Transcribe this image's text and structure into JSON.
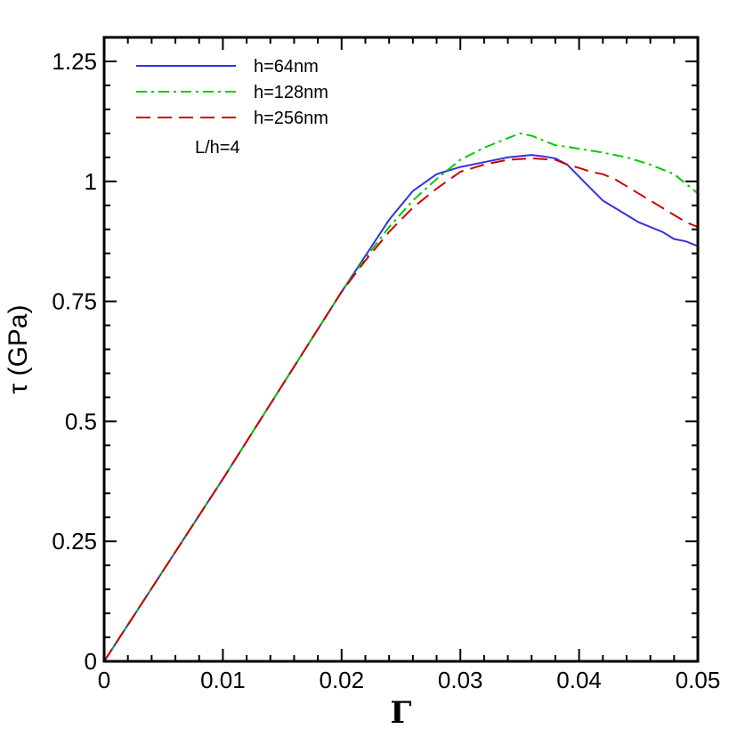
{
  "chart_data": {
    "type": "line",
    "title": "",
    "xlabel": "Γ",
    "ylabel": "τ (GPa)",
    "xlim": [
      0,
      0.05
    ],
    "ylim": [
      0,
      1.3
    ],
    "xticks": [
      0,
      0.01,
      0.02,
      0.03,
      0.04,
      0.05
    ],
    "xtick_labels": [
      "0",
      "0.01",
      "0.02",
      "0.03",
      "0.04",
      "0.05"
    ],
    "yticks": [
      0,
      0.25,
      0.5,
      0.75,
      1,
      1.25
    ],
    "ytick_labels": [
      "0",
      "0.25",
      "0.5",
      "0.75",
      "1",
      "1.25"
    ],
    "grid": false,
    "legend_position": "top-left",
    "annotation": "L/h=4",
    "series": [
      {
        "name": "h=64nm",
        "color": "#3333dd",
        "dash": "solid",
        "x": [
          0,
          0.005,
          0.01,
          0.015,
          0.02,
          0.022,
          0.024,
          0.026,
          0.028,
          0.03,
          0.032,
          0.034,
          0.036,
          0.037,
          0.038,
          0.039,
          0.04,
          0.041,
          0.042,
          0.043,
          0.044,
          0.045,
          0.046,
          0.047,
          0.048,
          0.049,
          0.05
        ],
        "y": [
          0,
          0.19,
          0.38,
          0.575,
          0.77,
          0.845,
          0.92,
          0.98,
          1.015,
          1.03,
          1.04,
          1.05,
          1.055,
          1.052,
          1.048,
          1.035,
          1.01,
          0.985,
          0.96,
          0.945,
          0.93,
          0.915,
          0.905,
          0.895,
          0.88,
          0.875,
          0.865
        ]
      },
      {
        "name": "h=128nm",
        "color": "#00cc00",
        "dash": "dashdot",
        "x": [
          0,
          0.005,
          0.01,
          0.015,
          0.02,
          0.022,
          0.024,
          0.026,
          0.028,
          0.03,
          0.032,
          0.034,
          0.035,
          0.036,
          0.037,
          0.038,
          0.039,
          0.04,
          0.042,
          0.044,
          0.046,
          0.048,
          0.049,
          0.05
        ],
        "y": [
          0,
          0.19,
          0.38,
          0.575,
          0.77,
          0.84,
          0.905,
          0.96,
          1.005,
          1.045,
          1.07,
          1.09,
          1.1,
          1.095,
          1.085,
          1.075,
          1.072,
          1.068,
          1.06,
          1.05,
          1.035,
          1.015,
          0.995,
          0.975
        ]
      },
      {
        "name": "h=256nm",
        "color": "#cc0000",
        "dash": "dashed",
        "x": [
          0,
          0.005,
          0.01,
          0.015,
          0.02,
          0.022,
          0.024,
          0.026,
          0.028,
          0.03,
          0.032,
          0.034,
          0.036,
          0.038,
          0.039,
          0.04,
          0.041,
          0.042,
          0.043,
          0.044,
          0.045,
          0.046,
          0.047,
          0.048,
          0.049,
          0.05
        ],
        "y": [
          0,
          0.19,
          0.38,
          0.575,
          0.77,
          0.835,
          0.895,
          0.945,
          0.985,
          1.02,
          1.035,
          1.045,
          1.048,
          1.045,
          1.035,
          1.028,
          1.02,
          1.015,
          1.005,
          0.99,
          0.975,
          0.96,
          0.945,
          0.93,
          0.915,
          0.905
        ]
      }
    ]
  }
}
